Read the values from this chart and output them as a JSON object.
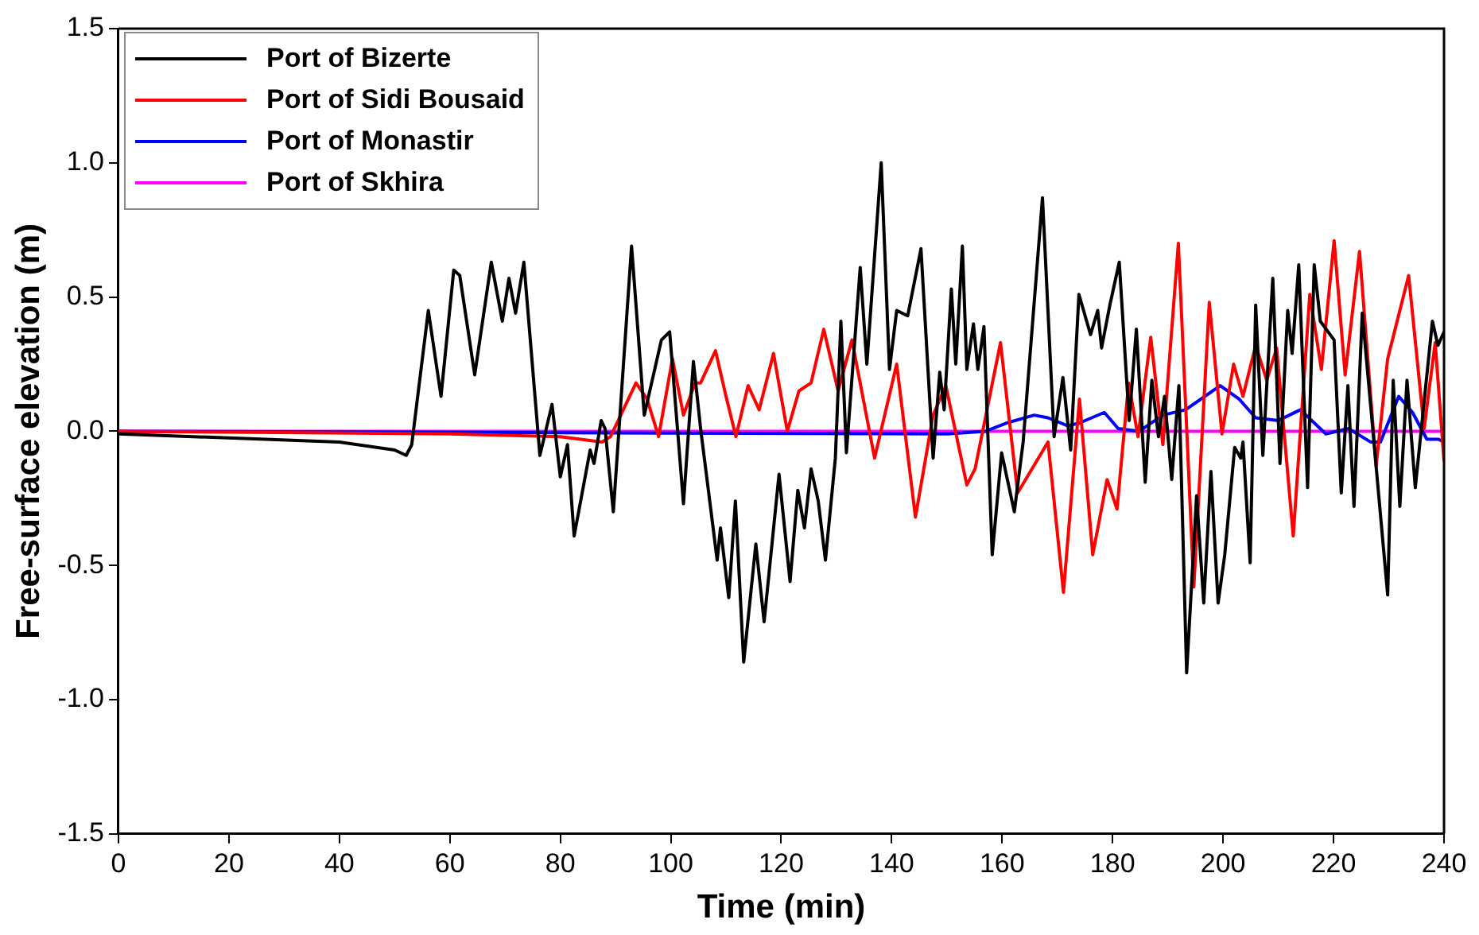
{
  "chart_data": {
    "type": "line",
    "xlabel": "Time (min)",
    "ylabel": "Free-surface elevation (m)",
    "xlim": [
      0,
      240
    ],
    "xticks": [
      0,
      20,
      40,
      60,
      80,
      100,
      120,
      140,
      160,
      180,
      200,
      220,
      240
    ],
    "ylim": [
      -1.5,
      1.5
    ],
    "yticks": [
      {
        "value": -1.5,
        "label": "-1.5"
      },
      {
        "value": -1,
        "label": "-1.0"
      },
      {
        "value": -0.5,
        "label": "-0.5"
      },
      {
        "value": 0,
        "label": "0.0"
      },
      {
        "value": 0.5,
        "label": "0.5"
      },
      {
        "value": 1,
        "label": "1.0"
      },
      {
        "value": 1.5,
        "label": "1.5"
      }
    ],
    "grid": false,
    "legend": "top left",
    "marker": "none",
    "line_style": "solid",
    "series": [
      {
        "name": "Port of Bizerte",
        "color": "#000000",
        "x": [
          0,
          40,
          50,
          52.1,
          53.1,
          56.1,
          58.4,
          60.7,
          61.8,
          64.5,
          67.5,
          69.5,
          70.7,
          71.9,
          73.4,
          76.3,
          78.5,
          80,
          81.3,
          82.5,
          85.4,
          86.1,
          87.4,
          88.1,
          89.6,
          92.9,
          95.2,
          98.3,
          99.8,
          102.3,
          104.1,
          105.4,
          108.4,
          109,
          110.5,
          111.7,
          113.2,
          115.4,
          116.9,
          119.6,
          121.6,
          123,
          124.2,
          125.4,
          126.7,
          128,
          129.8,
          130.8,
          131.8,
          134.3,
          135.5,
          138.1,
          139.6,
          140.9,
          142.9,
          145.3,
          147.5,
          148.7,
          149.5,
          150.8,
          151.6,
          152.8,
          153.6,
          154.8,
          155.6,
          156.7,
          158.2,
          159.9,
          162.2,
          163.8,
          167.3,
          169.4,
          171,
          172.4,
          173.9,
          176,
          177.3,
          178,
          179.5,
          181.2,
          183,
          184.3,
          185.9,
          187.1,
          188.3,
          189.4,
          190.7,
          192,
          193.4,
          195.2,
          196.5,
          197.8,
          199.1,
          200.3,
          202.1,
          203.2,
          203.6,
          204.9,
          205.9,
          207.2,
          209,
          210.3,
          211.7,
          212.5,
          213.7,
          215.3,
          216.5,
          217.6,
          220.1,
          221.4,
          222.6,
          223.7,
          225.2,
          226.7,
          229.8,
          230.8,
          232,
          233.3,
          234.8,
          237.9,
          238.9,
          240
        ],
        "values": [
          -0.01,
          -0.04,
          -0.07,
          -0.09,
          -0.05,
          0.45,
          0.13,
          0.6,
          0.58,
          0.21,
          0.63,
          0.41,
          0.57,
          0.44,
          0.63,
          -0.09,
          0.1,
          -0.17,
          -0.05,
          -0.39,
          -0.07,
          -0.12,
          0.04,
          0.01,
          -0.3,
          0.69,
          0.06,
          0.34,
          0.37,
          -0.27,
          0.26,
          0.01,
          -0.48,
          -0.36,
          -0.62,
          -0.26,
          -0.86,
          -0.42,
          -0.71,
          -0.16,
          -0.56,
          -0.22,
          -0.36,
          -0.14,
          -0.26,
          -0.48,
          -0.1,
          0.41,
          -0.08,
          0.61,
          0.25,
          1.0,
          0.23,
          0.45,
          0.43,
          0.68,
          -0.1,
          0.22,
          0.08,
          0.53,
          0.25,
          0.69,
          0.23,
          0.4,
          0.23,
          0.39,
          -0.46,
          -0.08,
          -0.3,
          -0.04,
          0.87,
          -0.02,
          0.2,
          -0.07,
          0.51,
          0.36,
          0.45,
          0.31,
          0.47,
          0.63,
          0.04,
          0.38,
          -0.19,
          0.19,
          -0.02,
          0.13,
          -0.18,
          0.17,
          -0.9,
          -0.24,
          -0.64,
          -0.15,
          -0.64,
          -0.46,
          -0.06,
          -0.1,
          -0.04,
          -0.49,
          0.47,
          -0.09,
          0.57,
          -0.12,
          0.45,
          0.29,
          0.62,
          -0.21,
          0.62,
          0.41,
          0.34,
          -0.23,
          0.17,
          -0.28,
          0.44,
          0.1,
          -0.61,
          0.19,
          -0.28,
          0.19,
          -0.21,
          0.41,
          0.32,
          0.37
        ]
      },
      {
        "name": "Port of Sidi Bousaid",
        "color": "#ff0000",
        "x": [
          0,
          60,
          80,
          87.6,
          89.1,
          93.7,
          95.7,
          97.8,
          100.3,
          102.3,
          104.4,
          105.4,
          108.1,
          110,
          111.8,
          114,
          116,
          118.6,
          121.1,
          123.2,
          125.4,
          127.7,
          130.3,
          132.8,
          136.9,
          140.9,
          144.3,
          147.5,
          149.8,
          153.6,
          155.1,
          159.7,
          162.8,
          168.3,
          171.1,
          174,
          176.4,
          179,
          180.8,
          182.9,
          184.6,
          186.9,
          189.1,
          191.9,
          194.7,
          197.5,
          199.8,
          201.9,
          203.6,
          205.9,
          207.9,
          209.7,
          212.7,
          215.7,
          217.8,
          220.1,
          222.1,
          224.7,
          227.7,
          229.8,
          233.6,
          236.4,
          238.4,
          240
        ],
        "values": [
          0,
          -0.01,
          -0.02,
          -0.04,
          -0.02,
          0.18,
          0.12,
          -0.02,
          0.27,
          0.06,
          0.18,
          0.18,
          0.3,
          0.13,
          -0.02,
          0.17,
          0.08,
          0.29,
          0,
          0.15,
          0.18,
          0.38,
          0.15,
          0.34,
          -0.1,
          0.25,
          -0.32,
          0.06,
          0.17,
          -0.2,
          -0.14,
          0.33,
          -0.23,
          -0.04,
          -0.6,
          0.12,
          -0.46,
          -0.18,
          -0.29,
          0.18,
          -0.02,
          0.35,
          -0.05,
          0.7,
          -0.58,
          0.48,
          -0.01,
          0.25,
          0.13,
          0.32,
          0.19,
          0.31,
          -0.39,
          0.51,
          0.23,
          0.71,
          0.21,
          0.67,
          -0.13,
          0.27,
          0.58,
          0.01,
          0.33,
          -0.11
        ]
      },
      {
        "name": "Port of Monastir",
        "color": "#0000ff",
        "x": [
          0,
          150,
          157,
          160.7,
          165.8,
          168.3,
          171.9,
          173.9,
          178.5,
          181,
          184.8,
          189.1,
          193.2,
          199.5,
          202.9,
          205.9,
          210,
          214,
          218.6,
          222.7,
          226.7,
          228.5,
          231.8,
          234.3,
          236.9,
          239,
          240
        ],
        "values": [
          0,
          -0.01,
          0,
          0.03,
          0.06,
          0.05,
          0.02,
          0.03,
          0.07,
          0.01,
          0,
          0.06,
          0.08,
          0.17,
          0.12,
          0.05,
          0.04,
          0.08,
          -0.01,
          0.01,
          -0.04,
          -0.04,
          0.13,
          0.07,
          -0.03,
          -0.03,
          -0.04
        ]
      },
      {
        "name": "Port of Skhira",
        "color": "#ff00ff",
        "x": [
          0,
          240
        ],
        "values": [
          0,
          0
        ]
      }
    ]
  }
}
